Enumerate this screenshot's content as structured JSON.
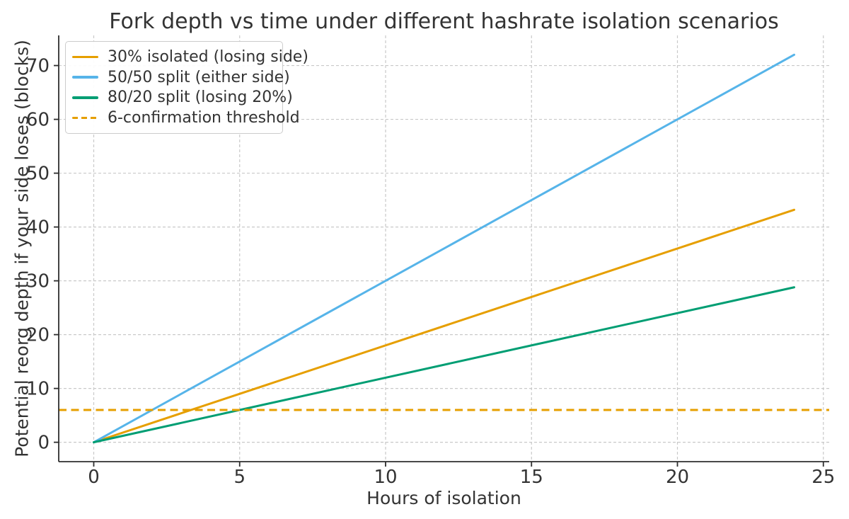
{
  "chart_data": {
    "type": "line",
    "title": "Fork depth vs time under different hashrate isolation scenarios",
    "xlabel": "Hours of isolation",
    "ylabel": "Potential reorg depth if your side loses (blocks)",
    "xlim": [
      -1.2,
      25.2
    ],
    "ylim": [
      -3.6,
      75.6
    ],
    "xticks": [
      0,
      5,
      10,
      15,
      20,
      25
    ],
    "yticks": [
      0,
      10,
      20,
      30,
      40,
      50,
      60,
      70
    ],
    "grid": true,
    "grid_style": "dashed",
    "legend_position": "upper-left",
    "series": [
      {
        "name": "30% isolated (losing side)",
        "color": "#E69F00",
        "style": "solid",
        "x": [
          0,
          24
        ],
        "y": [
          0,
          43.2
        ]
      },
      {
        "name": "50/50 split (either side)",
        "color": "#56B4E9",
        "style": "solid",
        "x": [
          0,
          24
        ],
        "y": [
          0,
          72
        ]
      },
      {
        "name": "80/20 split (losing 20%)",
        "color": "#009E73",
        "style": "solid",
        "x": [
          0,
          24
        ],
        "y": [
          0,
          28.8
        ]
      }
    ],
    "threshold": {
      "name": "6-confirmation threshold",
      "color": "#E69F00",
      "style": "dashed",
      "y": 6
    },
    "colors": {
      "grid": "#c9c9c9",
      "spine": "#2e2e2e",
      "text": "#333333",
      "background": "#ffffff"
    }
  }
}
